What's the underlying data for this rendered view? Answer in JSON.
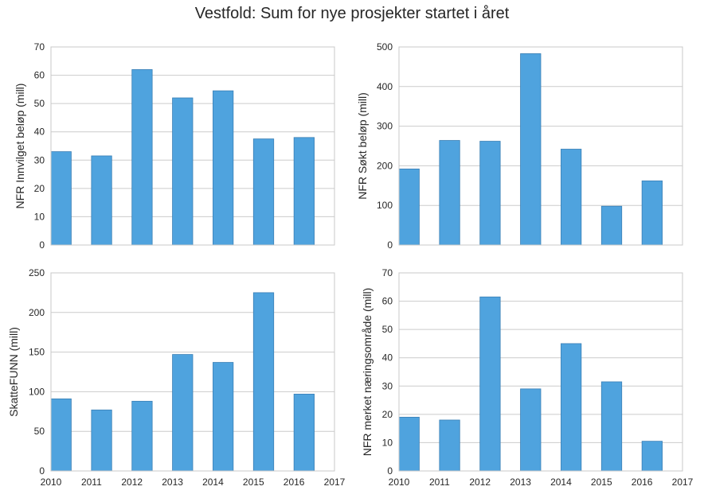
{
  "title": "Vestfold: Sum for nye prosjekter startet i året",
  "chart_data": [
    {
      "type": "bar",
      "ylabel": "NFR Innvilget beløp (mill)",
      "categories": [
        "2010",
        "2011",
        "2012",
        "2013",
        "2014",
        "2015",
        "2016"
      ],
      "values": [
        33,
        31.5,
        62,
        52,
        54.5,
        37.5,
        38
      ],
      "ylim": [
        0,
        70
      ],
      "yticks": [
        "0",
        "10",
        "20",
        "30",
        "40",
        "50",
        "60",
        "70"
      ],
      "grid": true
    },
    {
      "type": "bar",
      "ylabel": "NFR Søkt beløp (mill)",
      "categories": [
        "2010",
        "2011",
        "2012",
        "2013",
        "2014",
        "2015",
        "2016"
      ],
      "values": [
        192,
        264,
        262,
        483,
        242,
        98,
        162
      ],
      "ylim": [
        0,
        500
      ],
      "yticks": [
        "0",
        "100",
        "200",
        "300",
        "400",
        "500"
      ],
      "grid": true
    },
    {
      "type": "bar",
      "ylabel": "SkatteFUNN (mill)",
      "categories": [
        "2010",
        "2011",
        "2012",
        "2013",
        "2014",
        "2015",
        "2016"
      ],
      "values": [
        91,
        77,
        88,
        147,
        137,
        225,
        97
      ],
      "ylim": [
        0,
        250
      ],
      "yticks": [
        "0",
        "50",
        "100",
        "150",
        "200",
        "250"
      ],
      "xticks": [
        "2010",
        "2011",
        "2012",
        "2013",
        "2014",
        "2015",
        "2016",
        "2017"
      ],
      "grid": true
    },
    {
      "type": "bar",
      "ylabel": "NFR merket næringsområde (mill)",
      "categories": [
        "2010",
        "2011",
        "2012",
        "2013",
        "2014",
        "2015",
        "2016"
      ],
      "values": [
        19,
        18,
        61.5,
        29,
        45,
        31.5,
        10.5
      ],
      "ylim": [
        0,
        70
      ],
      "yticks": [
        "0",
        "10",
        "20",
        "30",
        "40",
        "50",
        "60",
        "70"
      ],
      "xticks": [
        "2010",
        "2011",
        "2012",
        "2013",
        "2014",
        "2015",
        "2016",
        "2017"
      ],
      "grid": true
    }
  ],
  "colors": {
    "bar_fill": "#4fa3de",
    "bar_edge": "#3a7fb5",
    "grid": "#cccccc",
    "frame": "#c8c8c8",
    "text": "#262626"
  }
}
